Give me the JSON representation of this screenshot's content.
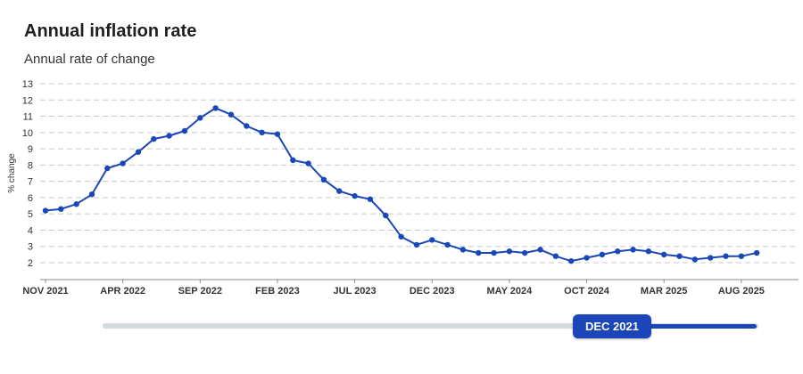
{
  "title": "Annual inflation rate",
  "subtitle": "Annual rate of change",
  "slider": {
    "label": "DEC 2021"
  },
  "colors": {
    "line": "#1b46b8",
    "grid": "#c8c8c8",
    "slider_track": "#d4d9dc"
  },
  "chart_data": {
    "type": "line",
    "title": "Annual inflation rate",
    "subtitle": "Annual rate of change",
    "ylabel": "% change",
    "xlabel": "",
    "ylim": [
      2,
      13
    ],
    "yticks": [
      2,
      3,
      4,
      5,
      6,
      7,
      8,
      9,
      10,
      11,
      12,
      13
    ],
    "x_tick_labels": [
      "NOV 2021",
      "APR 2022",
      "SEP 2022",
      "FEB 2023",
      "JUL 2023",
      "DEC 2023",
      "MAY 2024",
      "OCT 2024",
      "MAR 2025",
      "AUG 2025"
    ],
    "grid": true,
    "x": [
      "2021-11",
      "2021-12",
      "2022-01",
      "2022-02",
      "2022-03",
      "2022-04",
      "2022-05",
      "2022-06",
      "2022-07",
      "2022-08",
      "2022-09",
      "2022-10",
      "2022-11",
      "2022-12",
      "2023-01",
      "2023-02",
      "2023-03",
      "2023-04",
      "2023-05",
      "2023-06",
      "2023-07",
      "2023-08",
      "2023-09",
      "2023-10",
      "2023-11",
      "2023-12",
      "2024-01",
      "2024-02",
      "2024-03",
      "2024-04",
      "2024-05",
      "2024-06",
      "2024-07",
      "2024-08",
      "2024-09",
      "2024-10",
      "2024-11",
      "2024-12",
      "2025-01",
      "2025-02",
      "2025-03",
      "2025-04",
      "2025-05",
      "2025-06",
      "2025-07",
      "2025-08",
      "2025-09"
    ],
    "series": [
      {
        "values": [
          5.2,
          5.3,
          5.6,
          6.2,
          7.8,
          8.1,
          8.8,
          9.6,
          9.8,
          10.1,
          10.9,
          11.5,
          11.1,
          10.4,
          10.0,
          9.9,
          8.3,
          8.1,
          7.1,
          6.4,
          6.1,
          5.9,
          4.9,
          3.6,
          3.1,
          3.4,
          3.1,
          2.8,
          2.6,
          2.6,
          2.7,
          2.6,
          2.8,
          2.4,
          2.1,
          2.3,
          2.5,
          2.7,
          2.8,
          2.7,
          2.5,
          2.4,
          2.2,
          2.3,
          2.4,
          2.4,
          2.6
        ]
      }
    ]
  }
}
